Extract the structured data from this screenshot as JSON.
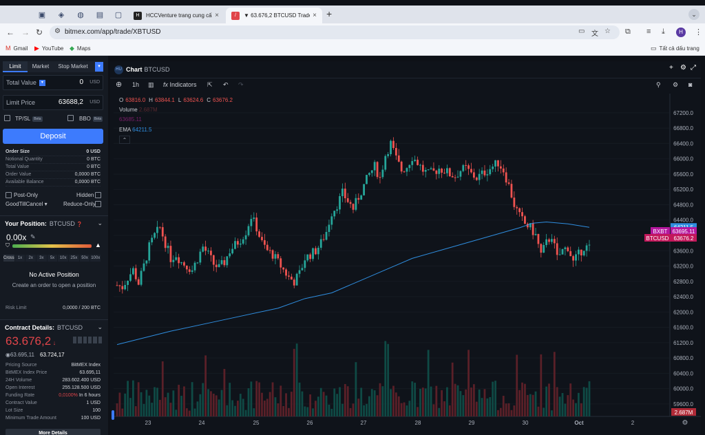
{
  "browser": {
    "tabs": [
      {
        "title": "HCCVenture trang cung cấp",
        "close": "×"
      },
      {
        "title": "▼ 63.676,2 BTCUSD Trade -",
        "close": "×"
      }
    ],
    "new_tab": "+",
    "url": "bitmex.com/app/trade/XBTUSD",
    "avatar": "H",
    "bookmarks": [
      {
        "label": "Gmail"
      },
      {
        "label": "YouTube"
      },
      {
        "label": "Maps"
      }
    ],
    "all_bookmarks": "Tất cả dấu trang",
    "colors": {
      "gmail": "#d93025",
      "youtube": "#ff0000",
      "maps": "#34a853",
      "tab_fav_bitmex": "#e0454a"
    }
  },
  "order_panel": {
    "tabs": [
      "Limit",
      "Market",
      "Stop Market"
    ],
    "total_value": {
      "label": "Total Value",
      "value": "0",
      "currency": "USD"
    },
    "limit_price": {
      "label": "Limit Price",
      "value": "63688,2",
      "currency": "USD"
    },
    "tpsl": "TP/SL",
    "bbo": "BBO",
    "beta": "Beta",
    "deposit": "Deposit",
    "summary": [
      {
        "label": "Order Size",
        "value": "0 USD"
      },
      {
        "label": "Notional Quantity",
        "value": "0 BTC"
      },
      {
        "label": "Total Value",
        "value": "0 BTC"
      },
      {
        "label": "Order Value",
        "value": "0,0000 BTC"
      },
      {
        "label": "Available Balance",
        "value": "0,0000 BTC"
      }
    ],
    "post_only": "Post-Only",
    "hidden": "Hidden",
    "time_in_force": "GoodTillCancel",
    "reduce_only": "Reduce-Only"
  },
  "position": {
    "title": "Your Position:",
    "symbol": "BTCUSD",
    "leverage": "0.00x",
    "leverage_buttons": [
      "Cross",
      "1x",
      "2x",
      "3x",
      "5x",
      "10x",
      "25x",
      "50x",
      "100x"
    ],
    "no_position": "No Active Position",
    "hint": "Create an order to open a position",
    "risk_limit_label": "Risk Limit",
    "risk_limit_value": "0,0000 / 200 BTC"
  },
  "contract": {
    "title": "Contract Details:",
    "symbol": "BTCUSD",
    "last_price": "63.676,2",
    "index_price": "63.695,11",
    "mark_price": "63.724,17",
    "rows": [
      {
        "label": "Pricing Source",
        "value": "BitMEX Index"
      },
      {
        "label": "BitMEX Index Price",
        "value": "63.695,11"
      },
      {
        "label": "24H Volume",
        "value": "283.602.400 USD"
      },
      {
        "label": "Open Interest",
        "value": "255.128.500 USD"
      },
      {
        "label": "Funding Rate",
        "value": "0,0100%",
        "value2": "In 6 hours"
      },
      {
        "label": "Contract Value",
        "value": "1 USD"
      },
      {
        "label": "Lot Size",
        "value": "100"
      },
      {
        "label": "Minimum Trade Amount",
        "value": "100 USD"
      }
    ],
    "more": "More Details"
  },
  "chart_panel": {
    "icon": "HU",
    "title": "Chart",
    "symbol": "BTCUSD",
    "interval": "1h",
    "indicators": "Indicators",
    "ohlc": {
      "o_label": "O",
      "o": "63816.0",
      "h_label": "H",
      "h": "63844.1",
      "l_label": "L",
      "l": "63624.6",
      "c_label": "C",
      "c": "63676.2"
    },
    "volume_label": "Volume",
    "volume_value": "2.687M",
    "volume_sub": "63685.11",
    "ema_label": "EMA",
    "ema_value": "64211.5",
    "y_axis": [
      "67200.0",
      "66800.0",
      "66400.0",
      "66000.0",
      "65600.0",
      "65200.0",
      "64800.0",
      "64400.0",
      "64000.0",
      "63600.0",
      "63200.0",
      "62800.0",
      "62400.0",
      "62000.0",
      "61600.0",
      "61200.0",
      "60800.0",
      "60400.0",
      "60000.0",
      "59600.0"
    ],
    "x_axis": [
      "23",
      "24",
      "25",
      "26",
      "27",
      "28",
      "29",
      "30",
      "Oct",
      "2"
    ],
    "tags": {
      "ema": "64211.5",
      "bxbt_label": "BXBT",
      "bxbt": "63695.11",
      "sym_label": "BTCUSD",
      "last": "63676.2",
      "vol": "2.687M"
    },
    "colors": {
      "up": "#26a69a",
      "down": "#ef5350",
      "ema": "#2f8ee0",
      "bxbt": "#b5179e",
      "last": "#c2185b"
    }
  },
  "chart_data": {
    "type": "candlestick",
    "interval": "1h",
    "symbol": "BTCUSD",
    "x_ticks": [
      "23",
      "24",
      "25",
      "26",
      "27",
      "28",
      "29",
      "30",
      "Oct",
      "2"
    ],
    "y_range": [
      59400,
      67400
    ],
    "last_close": 63676.2,
    "ema": 64211.5,
    "volume_last": "2.687M",
    "close_path": [
      [
        0,
        62700
      ],
      [
        2,
        62650
      ],
      [
        4,
        62900
      ],
      [
        6,
        63100
      ],
      [
        8,
        62750
      ],
      [
        10,
        63200
      ],
      [
        12,
        63700
      ],
      [
        14,
        64000
      ],
      [
        16,
        64200
      ],
      [
        18,
        63800
      ],
      [
        20,
        63400
      ],
      [
        22,
        63500
      ],
      [
        24,
        63300
      ],
      [
        26,
        63200
      ],
      [
        28,
        63100
      ],
      [
        30,
        63400
      ],
      [
        32,
        63700
      ],
      [
        34,
        63500
      ],
      [
        36,
        63250
      ],
      [
        38,
        63150
      ],
      [
        40,
        63300
      ],
      [
        42,
        63600
      ],
      [
        44,
        63750
      ],
      [
        46,
        63900
      ],
      [
        48,
        64100
      ],
      [
        50,
        64500
      ],
      [
        52,
        64200
      ],
      [
        54,
        63800
      ],
      [
        56,
        63600
      ],
      [
        58,
        63500
      ],
      [
        60,
        63300
      ],
      [
        62,
        63100
      ],
      [
        64,
        62900
      ],
      [
        66,
        62800
      ],
      [
        68,
        63000
      ],
      [
        70,
        63400
      ],
      [
        72,
        63500
      ],
      [
        74,
        63600
      ],
      [
        76,
        63800
      ],
      [
        78,
        64100
      ],
      [
        80,
        64600
      ],
      [
        82,
        64800
      ],
      [
        84,
        65100
      ],
      [
        86,
        64900
      ],
      [
        88,
        64700
      ],
      [
        90,
        65000
      ],
      [
        92,
        65300
      ],
      [
        94,
        65600
      ],
      [
        96,
        65800
      ],
      [
        98,
        65500
      ],
      [
        100,
        66100
      ],
      [
        102,
        66400
      ],
      [
        104,
        66000
      ],
      [
        106,
        65700
      ],
      [
        108,
        65800
      ],
      [
        110,
        66050
      ],
      [
        112,
        65900
      ],
      [
        114,
        65700
      ],
      [
        116,
        65600
      ],
      [
        118,
        65650
      ],
      [
        120,
        65750
      ],
      [
        122,
        65700
      ],
      [
        124,
        65600
      ],
      [
        126,
        65550
      ],
      [
        128,
        65700
      ],
      [
        130,
        65750
      ],
      [
        132,
        65600
      ],
      [
        134,
        65500
      ],
      [
        136,
        65600
      ],
      [
        138,
        65700
      ],
      [
        140,
        65800
      ],
      [
        142,
        65900
      ],
      [
        144,
        65700
      ],
      [
        146,
        65300
      ],
      [
        148,
        64800
      ],
      [
        150,
        64500
      ],
      [
        152,
        64300
      ],
      [
        154,
        64200
      ],
      [
        156,
        64000
      ],
      [
        158,
        63500
      ],
      [
        160,
        63800
      ],
      [
        162,
        64000
      ],
      [
        164,
        63400
      ],
      [
        166,
        63600
      ],
      [
        168,
        63700
      ],
      [
        170,
        63300
      ],
      [
        172,
        63500
      ],
      [
        174,
        63700
      ],
      [
        176,
        63676
      ]
    ],
    "ema_path": [
      [
        0,
        61150
      ],
      [
        20,
        61500
      ],
      [
        40,
        61800
      ],
      [
        60,
        62100
      ],
      [
        70,
        62350
      ],
      [
        80,
        62500
      ],
      [
        90,
        62800
      ],
      [
        100,
        63100
      ],
      [
        110,
        63400
      ],
      [
        120,
        63600
      ],
      [
        130,
        63800
      ],
      [
        140,
        64000
      ],
      [
        150,
        64200
      ],
      [
        155,
        64320
      ],
      [
        160,
        64350
      ],
      [
        168,
        64300
      ],
      [
        176,
        64211.5
      ]
    ]
  }
}
